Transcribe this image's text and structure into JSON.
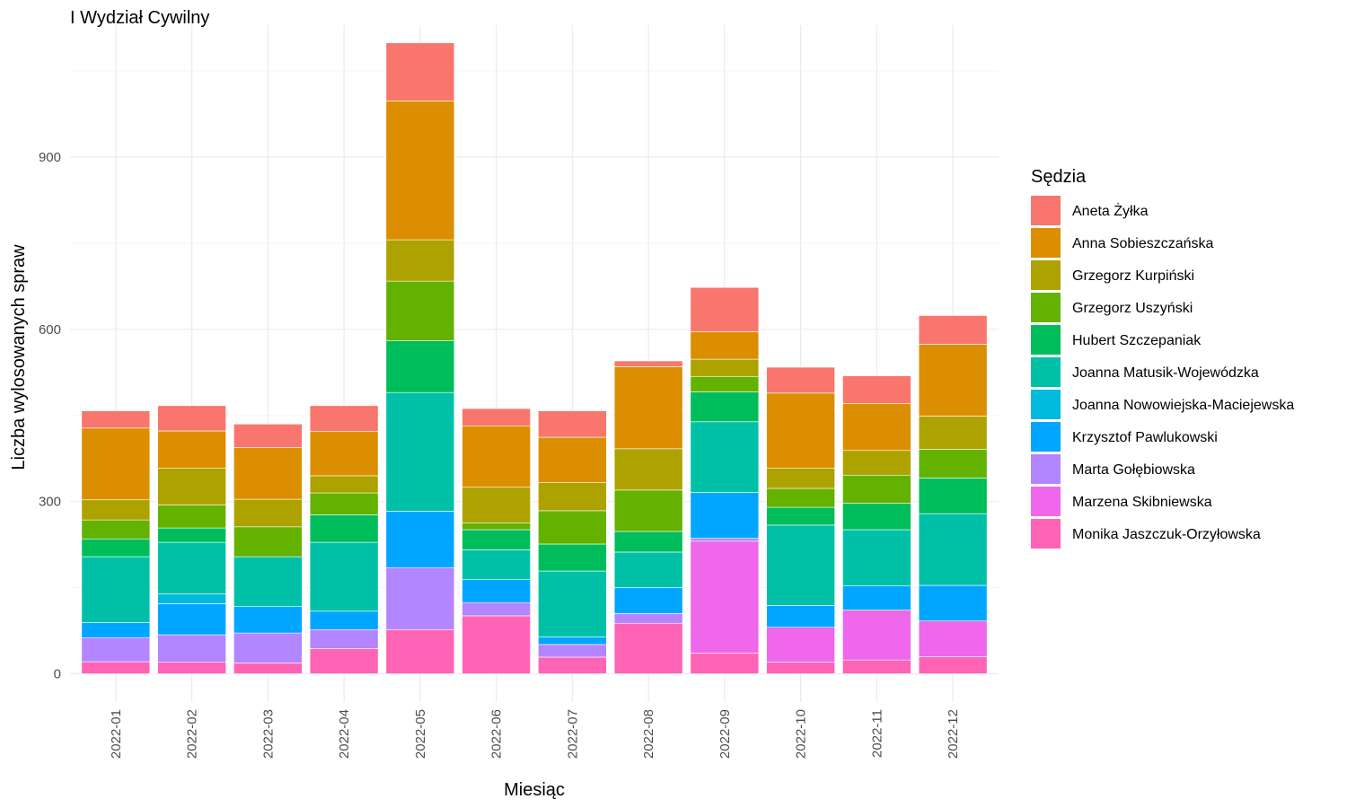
{
  "chart_data": {
    "type": "bar",
    "stacked": true,
    "title": "I Wydział Cywilny",
    "xlabel": "Miesiąc",
    "ylabel": "Liczba wylosowanych spraw",
    "ylim": [
      0,
      1100
    ],
    "yticks": [
      0,
      300,
      600,
      900
    ],
    "grid": true,
    "legend_title": "Sędzia",
    "legend_position": "right",
    "categories": [
      "2022-01",
      "2022-02",
      "2022-03",
      "2022-04",
      "2022-05",
      "2022-06",
      "2022-07",
      "2022-08",
      "2022-09",
      "2022-10",
      "2022-11",
      "2022-12"
    ],
    "series": [
      {
        "name": "Aneta Żyłka",
        "color": "#F8766D",
        "values": [
          30,
          44,
          41,
          45,
          101,
          30,
          46,
          10,
          77,
          45,
          48,
          50
        ]
      },
      {
        "name": "Anna Sobieszczańska",
        "color": "#DB8E00",
        "values": [
          125,
          65,
          90,
          77,
          242,
          107,
          79,
          143,
          48,
          131,
          82,
          125
        ]
      },
      {
        "name": "Grzegorz Kurpiński",
        "color": "#AEA200",
        "values": [
          35,
          64,
          48,
          30,
          72,
          62,
          49,
          72,
          30,
          35,
          43,
          58
        ]
      },
      {
        "name": "Grzegorz Uszyński",
        "color": "#64B200",
        "values": [
          33,
          40,
          52,
          38,
          104,
          12,
          58,
          72,
          27,
          33,
          49,
          50
        ]
      },
      {
        "name": "Hubert Szczepaniak",
        "color": "#00BD5C",
        "values": [
          31,
          25,
          0,
          48,
          90,
          35,
          47,
          36,
          52,
          31,
          46,
          62
        ]
      },
      {
        "name": "Joanna Matusik-Wojewódzka",
        "color": "#00C1A7",
        "values": [
          115,
          90,
          87,
          120,
          207,
          52,
          115,
          62,
          123,
          140,
          98,
          125
        ]
      },
      {
        "name": "Joanna Nowowiejska-Maciejewska",
        "color": "#00BADE",
        "values": [
          0,
          17,
          0,
          0,
          0,
          0,
          0,
          0,
          0,
          0,
          0,
          0
        ]
      },
      {
        "name": "Krzysztof Pawlukowski",
        "color": "#00A6FF",
        "values": [
          26,
          54,
          46,
          32,
          98,
          40,
          13,
          45,
          80,
          38,
          42,
          62
        ]
      },
      {
        "name": "Marta Gołębiowska",
        "color": "#B385FF",
        "values": [
          42,
          48,
          52,
          33,
          108,
          23,
          22,
          17,
          5,
          0,
          0,
          0
        ]
      },
      {
        "name": "Marzena Skibniewska",
        "color": "#EF67EB",
        "values": [
          0,
          0,
          0,
          0,
          0,
          0,
          0,
          0,
          195,
          61,
          87,
          62
        ]
      },
      {
        "name": "Monika Jaszczuk-Orzyłowska",
        "color": "#FF63B6",
        "values": [
          21,
          20,
          19,
          44,
          77,
          101,
          29,
          88,
          36,
          20,
          24,
          30
        ]
      }
    ]
  }
}
